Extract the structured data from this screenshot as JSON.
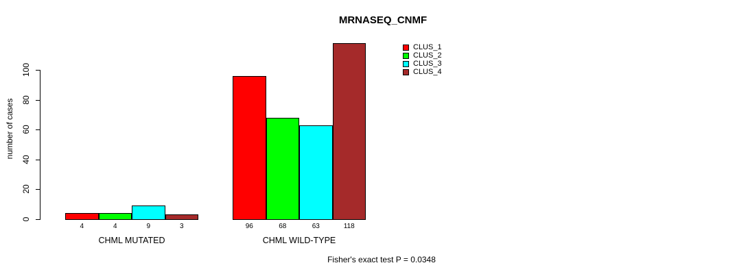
{
  "chart_data": {
    "type": "bar",
    "title": "MRNASEQ_CNMF",
    "ylabel": "number of cases",
    "xlabel": "",
    "yticks": [
      0,
      20,
      40,
      60,
      80,
      100
    ],
    "ylim": [
      0,
      118
    ],
    "grid": false,
    "legend_position": "top-right",
    "categories": [
      "CHML MUTATED",
      "CHML WILD-TYPE"
    ],
    "series": [
      {
        "name": "CLUS_1",
        "color": "#ff0000",
        "values": [
          4,
          96
        ]
      },
      {
        "name": "CLUS_2",
        "color": "#00ff00",
        "values": [
          4,
          68
        ]
      },
      {
        "name": "CLUS_3",
        "color": "#00ffff",
        "values": [
          9,
          63
        ]
      },
      {
        "name": "CLUS_4",
        "color": "#a52a2a",
        "values": [
          3,
          118
        ]
      }
    ],
    "bar_value_labels": [
      [
        "4",
        "4",
        "9",
        "3"
      ],
      [
        "96",
        "68",
        "63",
        "118"
      ]
    ],
    "annotation": "Fisher's exact test P = 0.0348"
  }
}
